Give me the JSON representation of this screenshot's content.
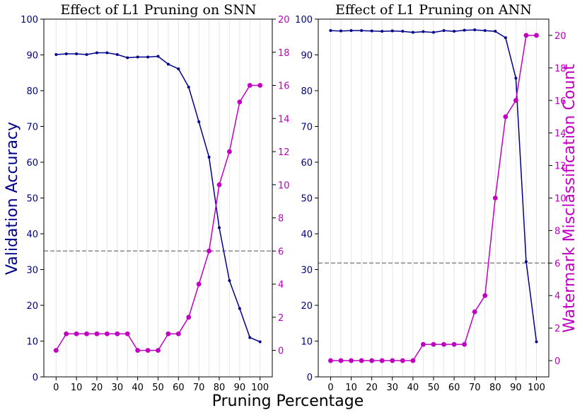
{
  "colors": {
    "accuracy": "#00008b",
    "watermark": "#c000c0",
    "threshold": "#808080",
    "grid": "#e6e6e6"
  },
  "labels": {
    "xlabel": "Pruning Percentage",
    "ylabel_left": "Validation Accuracy",
    "ylabel_right": "Watermark Misclassification Count"
  },
  "chart_data": [
    {
      "type": "line",
      "title": "Effect of L1 Pruning on SNN",
      "xlabel": "Pruning Percentage",
      "ylabel": "Validation Accuracy",
      "y2label": "",
      "x": [
        0,
        5,
        10,
        15,
        20,
        25,
        30,
        35,
        40,
        45,
        50,
        55,
        60,
        65,
        70,
        75,
        80,
        85,
        90,
        95,
        100
      ],
      "xticks": [
        0,
        10,
        20,
        30,
        40,
        50,
        60,
        70,
        80,
        90,
        100
      ],
      "xlim": [
        -6,
        106
      ],
      "ylim": [
        0,
        100
      ],
      "yticks": [
        0,
        10,
        20,
        30,
        40,
        50,
        60,
        70,
        80,
        90,
        100
      ],
      "y2lim": [
        -1.6,
        20
      ],
      "y2ticks": [
        0,
        2,
        4,
        6,
        8,
        10,
        12,
        14,
        16,
        18,
        20
      ],
      "grid": "vertical",
      "series": [
        {
          "axis": "left",
          "color": "#00008b",
          "values": [
            90.1,
            90.3,
            90.3,
            90.1,
            90.6,
            90.6,
            90.1,
            89.2,
            89.4,
            89.4,
            89.6,
            87.4,
            86.1,
            81.0,
            71.3,
            61.4,
            41.7,
            26.9,
            19.1,
            11.0,
            9.8
          ]
        },
        {
          "axis": "right",
          "color": "#c000c0",
          "values": [
            0,
            1,
            1,
            1,
            1,
            1,
            1,
            1,
            0,
            0,
            0,
            1,
            1,
            2,
            4,
            6,
            10,
            12,
            15,
            16,
            16
          ]
        }
      ],
      "threshold_right": 6
    },
    {
      "type": "line",
      "title": "Effect of L1 Pruning on ANN",
      "xlabel": "Pruning Percentage",
      "ylabel": "",
      "y2label": "Watermark Misclassification Count",
      "x": [
        0,
        5,
        10,
        15,
        20,
        25,
        30,
        35,
        40,
        45,
        50,
        55,
        60,
        65,
        70,
        75,
        80,
        85,
        90,
        95,
        100
      ],
      "xticks": [
        0,
        10,
        20,
        30,
        40,
        50,
        60,
        70,
        80,
        90,
        100
      ],
      "xlim": [
        -6,
        106
      ],
      "ylim": [
        0,
        100
      ],
      "yticks": [
        0,
        10,
        20,
        30,
        40,
        50,
        60,
        70,
        80,
        90,
        100
      ],
      "y2lim": [
        -1.0,
        21.0
      ],
      "y2ticks": [
        0,
        2,
        4,
        6,
        8,
        10,
        12,
        14,
        16,
        18,
        20
      ],
      "grid": "vertical",
      "series": [
        {
          "axis": "left",
          "color": "#00008b",
          "values": [
            96.8,
            96.7,
            96.8,
            96.8,
            96.7,
            96.6,
            96.7,
            96.6,
            96.3,
            96.5,
            96.3,
            96.8,
            96.6,
            96.9,
            97.0,
            96.8,
            96.6,
            94.8,
            83.5,
            32.2,
            9.8
          ]
        },
        {
          "axis": "right",
          "color": "#c000c0",
          "values": [
            0,
            0,
            0,
            0,
            0,
            0,
            0,
            0,
            0,
            1,
            1,
            1,
            1,
            1,
            3,
            4,
            10,
            15,
            16,
            20,
            20
          ]
        }
      ],
      "threshold_right": 6
    }
  ]
}
